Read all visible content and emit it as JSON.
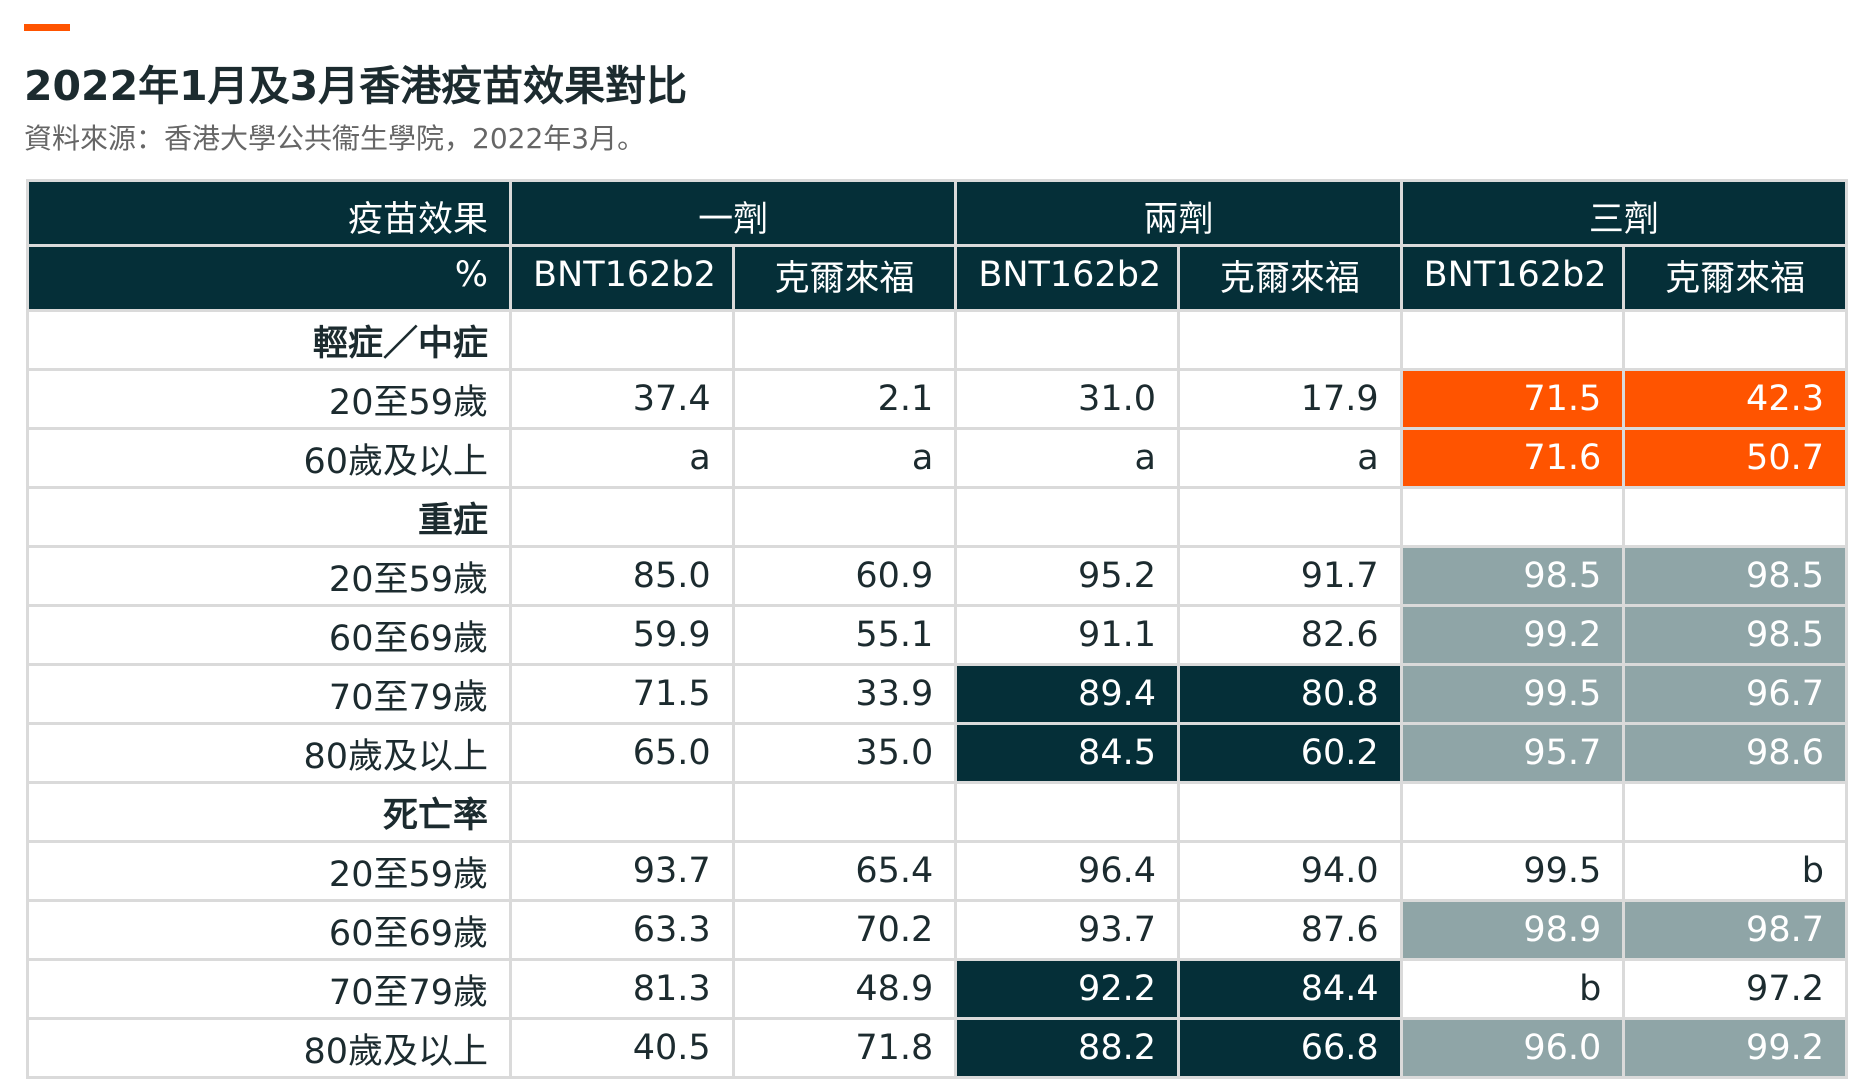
{
  "header": {
    "title": "2022年1月及3月香港疫苗效果對比",
    "subtitle": "資料來源：香港大學公共衞生學院，2022年3月。"
  },
  "colors": {
    "accent": "#ff5400",
    "dark": "#052f38",
    "grey": "#8fa5a7",
    "grid": "#dadada"
  },
  "chart_data": {
    "type": "table",
    "corner_title": "疫苗效果",
    "corner_unit": "%",
    "groups": [
      "一劑",
      "兩劑",
      "三劑"
    ],
    "vaccines": [
      "BNT162b2",
      "克爾來福",
      "BNT162b2",
      "克爾來福",
      "BNT162b2",
      "克爾來福"
    ],
    "rows": [
      {
        "label": "輕症／中症",
        "section": true,
        "values": [
          "",
          "",
          "",
          "",
          "",
          ""
        ],
        "fill": [
          "",
          "",
          "",
          "",
          "",
          ""
        ]
      },
      {
        "label": "20至59歲",
        "values": [
          "37.4",
          "2.1",
          "31.0",
          "17.9",
          "71.5",
          "42.3"
        ],
        "fill": [
          "",
          "",
          "",
          "",
          "o",
          "o"
        ]
      },
      {
        "label": "60歲及以上",
        "values": [
          "a",
          "a",
          "a",
          "a",
          "71.6",
          "50.7"
        ],
        "fill": [
          "",
          "",
          "",
          "",
          "o",
          "o"
        ]
      },
      {
        "label": "重症",
        "section": true,
        "values": [
          "",
          "",
          "",
          "",
          "",
          ""
        ],
        "fill": [
          "",
          "",
          "",
          "",
          "",
          ""
        ]
      },
      {
        "label": "20至59歲",
        "values": [
          "85.0",
          "60.9",
          "95.2",
          "91.7",
          "98.5",
          "98.5"
        ],
        "fill": [
          "",
          "",
          "",
          "",
          "g",
          "g"
        ]
      },
      {
        "label": "60至69歲",
        "values": [
          "59.9",
          "55.1",
          "91.1",
          "82.6",
          "99.2",
          "98.5"
        ],
        "fill": [
          "",
          "",
          "",
          "",
          "g",
          "g"
        ]
      },
      {
        "label": "70至79歲",
        "values": [
          "71.5",
          "33.9",
          "89.4",
          "80.8",
          "99.5",
          "96.7"
        ],
        "fill": [
          "",
          "",
          "d",
          "d",
          "g",
          "g"
        ]
      },
      {
        "label": "80歲及以上",
        "values": [
          "65.0",
          "35.0",
          "84.5",
          "60.2",
          "95.7",
          "98.6"
        ],
        "fill": [
          "",
          "",
          "d",
          "d",
          "g",
          "g"
        ]
      },
      {
        "label": "死亡率",
        "section": true,
        "values": [
          "",
          "",
          "",
          "",
          "",
          ""
        ],
        "fill": [
          "",
          "",
          "",
          "",
          "",
          ""
        ]
      },
      {
        "label": "20至59歲",
        "values": [
          "93.7",
          "65.4",
          "96.4",
          "94.0",
          "99.5",
          "b"
        ],
        "fill": [
          "",
          "",
          "",
          "",
          "",
          ""
        ]
      },
      {
        "label": "60至69歲",
        "values": [
          "63.3",
          "70.2",
          "93.7",
          "87.6",
          "98.9",
          "98.7"
        ],
        "fill": [
          "",
          "",
          "",
          "",
          "g",
          "g"
        ]
      },
      {
        "label": "70至79歲",
        "values": [
          "81.3",
          "48.9",
          "92.2",
          "84.4",
          "b",
          "97.2"
        ],
        "fill": [
          "",
          "",
          "d",
          "d",
          "",
          ""
        ]
      },
      {
        "label": "80歲及以上",
        "values": [
          "40.5",
          "71.8",
          "88.2",
          "66.8",
          "96.0",
          "99.2"
        ],
        "fill": [
          "",
          "",
          "d",
          "d",
          "g",
          "g"
        ]
      }
    ]
  }
}
